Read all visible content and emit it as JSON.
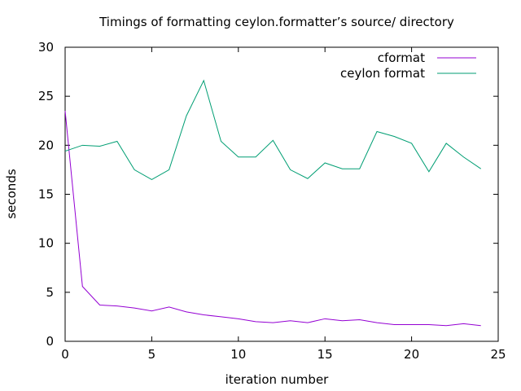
{
  "chart_data": {
    "type": "line",
    "title": "Timings of formatting ceylon.formatter’s source/ directory",
    "xlabel": "iteration number",
    "ylabel": "seconds",
    "xlim": [
      0,
      25
    ],
    "ylim": [
      0,
      30
    ],
    "xticks": [
      0,
      5,
      10,
      15,
      20,
      25
    ],
    "yticks": [
      0,
      5,
      10,
      15,
      20,
      25,
      30
    ],
    "grid": false,
    "legend_position": "top-right",
    "x": [
      0,
      1,
      2,
      3,
      4,
      5,
      6,
      7,
      8,
      9,
      10,
      11,
      12,
      13,
      14,
      15,
      16,
      17,
      18,
      19,
      20,
      21,
      22,
      23,
      24
    ],
    "series": [
      {
        "name": "cformat",
        "color": "#9400d3",
        "values": [
          23.5,
          5.6,
          3.7,
          3.6,
          3.4,
          3.1,
          3.5,
          3.0,
          2.7,
          2.5,
          2.3,
          2.0,
          1.9,
          2.1,
          1.9,
          2.3,
          2.1,
          2.2,
          1.9,
          1.7,
          1.7,
          1.7,
          1.6,
          1.8,
          1.6
        ]
      },
      {
        "name": "ceylon format",
        "color": "#009e73",
        "values": [
          19.4,
          20.0,
          19.9,
          20.4,
          17.5,
          16.5,
          17.5,
          23.0,
          26.6,
          20.4,
          18.8,
          18.8,
          20.5,
          17.5,
          16.6,
          18.2,
          17.6,
          17.6,
          21.4,
          20.9,
          20.2,
          17.3,
          20.2,
          18.8,
          17.6
        ]
      }
    ]
  }
}
